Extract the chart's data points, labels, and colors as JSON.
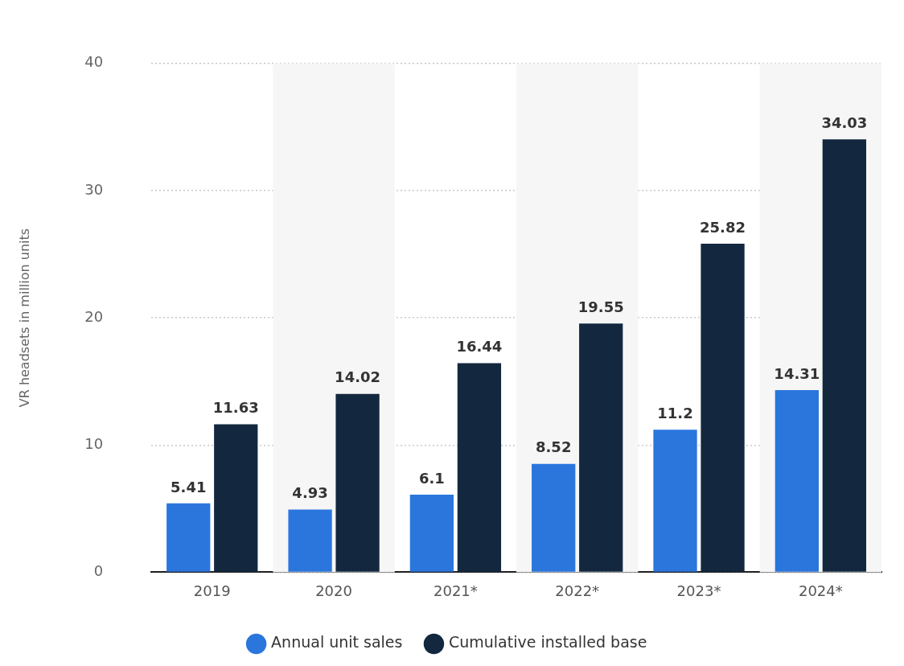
{
  "chart_data": {
    "type": "bar",
    "ylabel": "VR headsets in million units",
    "categories": [
      "2019",
      "2020",
      "2021*",
      "2022*",
      "2023*",
      "2024*"
    ],
    "series": [
      {
        "name": "Annual unit sales",
        "color": "#2a76dd",
        "values": [
          5.41,
          4.93,
          6.1,
          8.52,
          11.2,
          14.31
        ]
      },
      {
        "name": "Cumulative installed base",
        "color": "#13283f",
        "values": [
          11.63,
          14.02,
          16.44,
          19.55,
          25.82,
          34.03
        ]
      }
    ],
    "ylim": [
      0,
      40
    ],
    "yticks": [
      0,
      10,
      20,
      30,
      40
    ],
    "grid": "y",
    "legend": "bottom",
    "data_labels": true,
    "bands": [
      {
        "axis": "x",
        "from": "2020",
        "to": "2020",
        "color": "#f6f6f6"
      },
      {
        "axis": "x",
        "from": "2022*",
        "to": "2022*",
        "color": "#f6f6f6"
      },
      {
        "axis": "x",
        "from": "2024*",
        "to": "2024*",
        "color": "#f6f6f6"
      }
    ]
  }
}
